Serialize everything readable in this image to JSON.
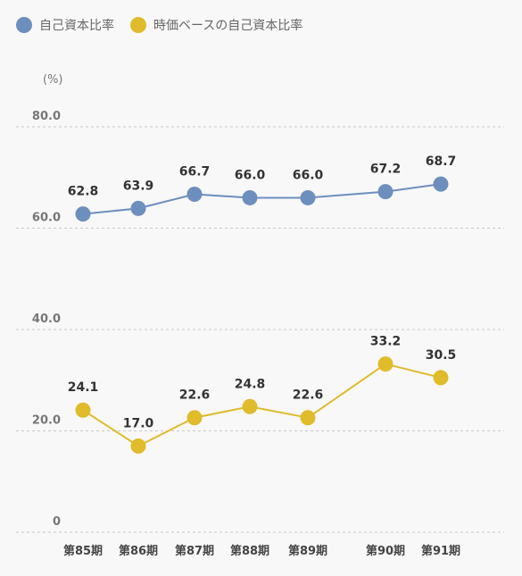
{
  "chart_data": {
    "type": "line",
    "unit": "(%)",
    "categories": [
      "第85期",
      "第86期",
      "第87期",
      "第88期",
      "第89期",
      "第90期",
      "第91期"
    ],
    "y_ticks": [
      "0",
      "20.0",
      "40.0",
      "60.0",
      "80.0"
    ],
    "ylim": [
      0,
      80
    ],
    "grid": true,
    "legend_position": "top-left",
    "series": [
      {
        "name": "自己資本比率",
        "color": "#6d8fbe",
        "values": [
          62.8,
          63.9,
          66.7,
          66.0,
          66.0,
          67.2,
          68.7
        ],
        "labels": [
          "62.8",
          "63.9",
          "66.7",
          "66.0",
          "66.0",
          "67.2",
          "68.7"
        ]
      },
      {
        "name": "時価ベースの自己資本比率",
        "color": "#e0bb2b",
        "values": [
          24.1,
          17.0,
          22.6,
          24.8,
          22.6,
          33.2,
          30.5
        ],
        "labels": [
          "24.1",
          "17.0",
          "22.6",
          "24.8",
          "22.6",
          "33.2",
          "30.5"
        ]
      }
    ]
  }
}
